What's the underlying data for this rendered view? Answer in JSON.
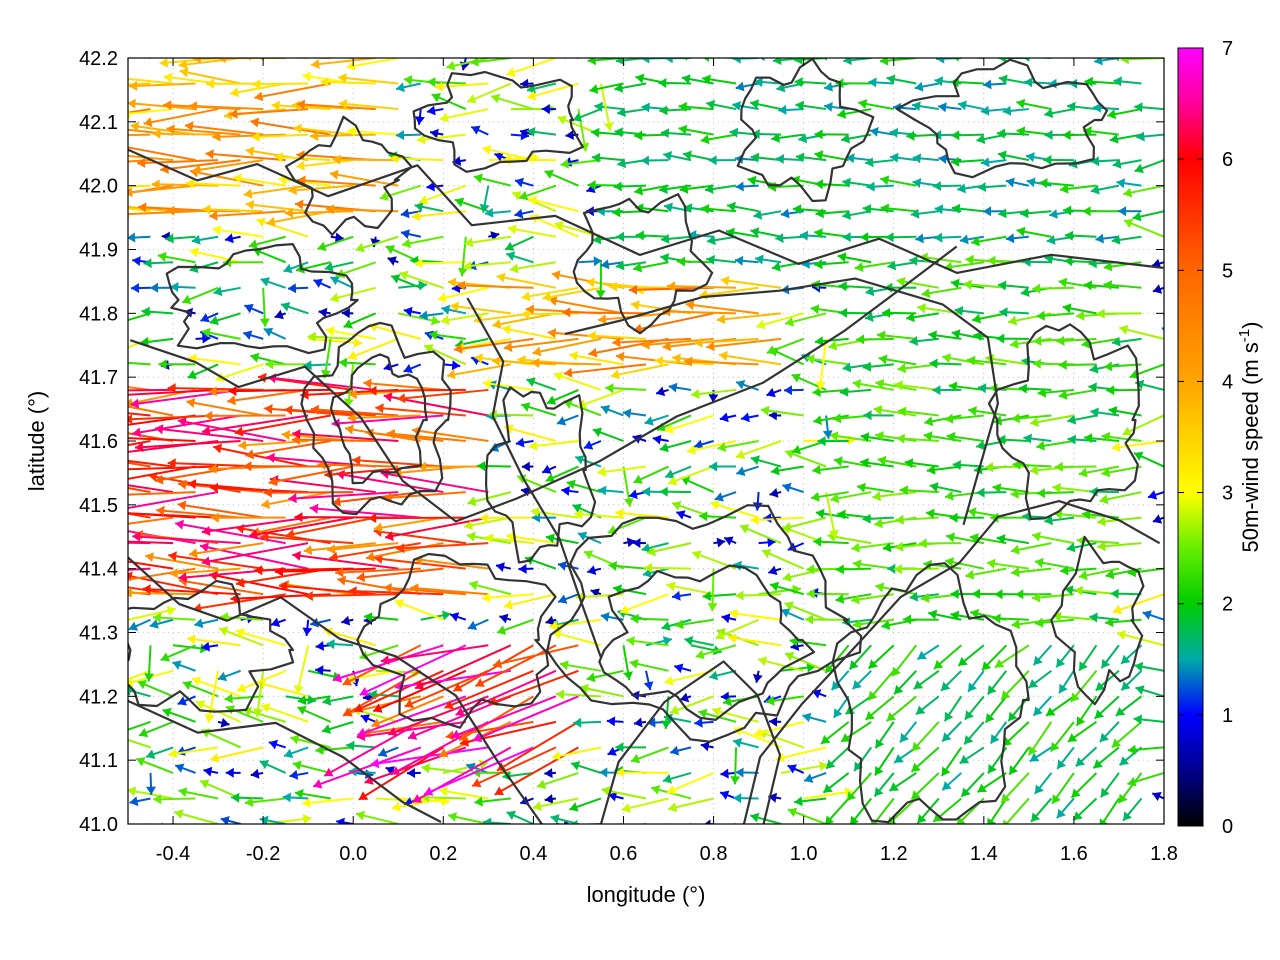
{
  "chart_data": {
    "type": "vector-field",
    "xlabel": "longitude (°)",
    "ylabel": "latitude (°)",
    "xlim": [
      -0.5,
      1.8
    ],
    "ylim": [
      41.0,
      42.2
    ],
    "xticks": [
      "-0.4",
      "-0.2",
      "0.0",
      "0.2",
      "0.4",
      "0.6",
      "0.8",
      "1.0",
      "1.2",
      "1.4",
      "1.6",
      "1.8"
    ],
    "xtick_values": [
      -0.4,
      -0.2,
      0.0,
      0.2,
      0.4,
      0.6,
      0.8,
      1.0,
      1.2,
      1.4,
      1.6,
      1.8
    ],
    "yticks": [
      "41.0",
      "41.1",
      "41.2",
      "41.3",
      "41.4",
      "41.5",
      "41.6",
      "41.7",
      "41.8",
      "41.9",
      "42.0",
      "42.1",
      "42.2"
    ],
    "ytick_values": [
      41.0,
      41.1,
      41.2,
      41.3,
      41.4,
      41.5,
      41.6,
      41.7,
      41.8,
      41.9,
      42.0,
      42.1,
      42.2
    ],
    "grid": "dotted",
    "colorbar": {
      "label_main": "50m-wind speed (m s",
      "label_sup": "-1",
      "label_close": ")",
      "range": [
        0,
        7
      ],
      "ticks": [
        "0",
        "1",
        "2",
        "3",
        "4",
        "5",
        "6",
        "7"
      ],
      "tick_values": [
        0,
        1,
        2,
        3,
        4,
        5,
        6,
        7
      ],
      "stops": [
        {
          "value": 0,
          "color": "#000000"
        },
        {
          "value": 0.5,
          "color": "#00008b"
        },
        {
          "value": 1,
          "color": "#0000ff"
        },
        {
          "value": 1.5,
          "color": "#00aaaa"
        },
        {
          "value": 2,
          "color": "#00cc00"
        },
        {
          "value": 2.5,
          "color": "#66ee00"
        },
        {
          "value": 3,
          "color": "#ffff00"
        },
        {
          "value": 4,
          "color": "#ffa500"
        },
        {
          "value": 5,
          "color": "#ff6600"
        },
        {
          "value": 6,
          "color": "#ff0000"
        },
        {
          "value": 6.5,
          "color": "#ff0099"
        },
        {
          "value": 7,
          "color": "#ff00ff"
        }
      ]
    },
    "contour_color": "#333333",
    "vectors": {
      "grid_lon_start": -0.5,
      "grid_lon_step": 0.05,
      "grid_lat_start": 41.0,
      "grid_lat_step": 0.04,
      "description_of_field": [
        {
          "lon": [
            -0.5,
            0.3
          ],
          "lat": [
            41.35,
            41.7
          ],
          "speed": 5.5,
          "dir_deg": 180
        },
        {
          "lon": [
            -0.5,
            0.1
          ],
          "lat": [
            41.95,
            42.2
          ],
          "speed": 4.0,
          "dir_deg": 180
        },
        {
          "lon": [
            0.3,
            1.0
          ],
          "lat": [
            41.7,
            41.85
          ],
          "speed": 4.2,
          "dir_deg": 180
        },
        {
          "lon": [
            0.1,
            0.5
          ],
          "lat": [
            41.1,
            41.3
          ],
          "speed": 6.0,
          "dir_deg": 200
        },
        {
          "lon": [
            0.6,
            1.8
          ],
          "lat": [
            41.85,
            42.2
          ],
          "speed": 1.8,
          "dir_deg": 180
        },
        {
          "lon": [
            1.1,
            1.8
          ],
          "lat": [
            41.0,
            41.3
          ],
          "speed": 2.0,
          "dir_deg": 225
        },
        {
          "lon": [
            1.1,
            1.8
          ],
          "lat": [
            41.3,
            41.9
          ],
          "speed": 2.2,
          "dir_deg": 180
        }
      ]
    }
  }
}
